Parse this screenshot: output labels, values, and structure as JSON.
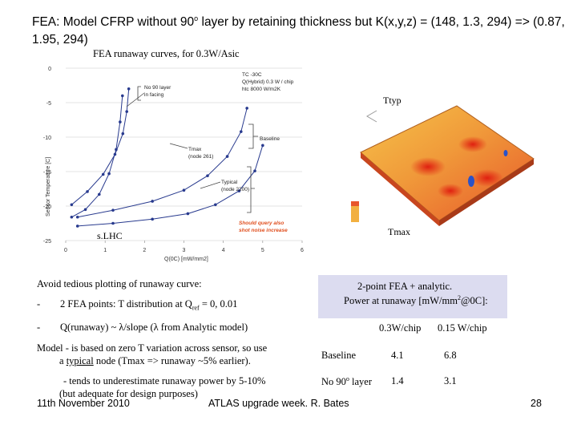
{
  "title": {
    "pre": "FEA: Model CFRP without 90",
    "sup": "o",
    "post": " layer by retaining thickness but K(x,y,z) = (148, 1.3, 294) => (0.87, 1.95, 294)"
  },
  "caption": "FEA runaway curves, for 0.3W/Asic",
  "chart_data": {
    "type": "scatter",
    "xlabel": "Q(0C) [mW/mm2]",
    "ylabel": "Sensor Temperature [C]",
    "xlim": [
      0,
      6
    ],
    "ylim": [
      -25,
      0
    ],
    "xticks": [
      "0",
      "1",
      "2",
      "3",
      "4",
      "5",
      "6"
    ],
    "yticks": [
      "0",
      "-5",
      "-10",
      "-15",
      "-20",
      "-25"
    ],
    "legend": [
      "TC  -30C",
      "Q(Hybrid) 0.3 W / chip",
      "htc   8000 W/m2K"
    ],
    "annotations": [
      "No 90 layer",
      "in facing",
      "Baseline",
      "Tmax",
      "(node 261)",
      "Typical",
      "(node 2200)",
      "Should query also",
      "shot noise increase"
    ],
    "series": [
      {
        "x": [
          0.15,
          0.5,
          0.85,
          1.1,
          1.28,
          1.38,
          1.44
        ],
        "y": [
          -21.6,
          -20.5,
          -18.3,
          -15.3,
          -11.8,
          -7.8,
          -4.0
        ]
      },
      {
        "x": [
          0.15,
          0.55,
          0.95,
          1.25,
          1.45,
          1.55,
          1.6
        ],
        "y": [
          -19.8,
          -17.9,
          -15.4,
          -12.5,
          -9.5,
          -6.3,
          -3.0
        ]
      },
      {
        "x": [
          0.3,
          1.2,
          2.2,
          3.0,
          3.6,
          4.1,
          4.45,
          4.6
        ],
        "y": [
          -21.6,
          -20.6,
          -19.3,
          -17.7,
          -15.6,
          -12.8,
          -9.2,
          -5.8
        ]
      },
      {
        "x": [
          0.3,
          1.2,
          2.2,
          3.1,
          3.8,
          4.4,
          4.8,
          5.0
        ],
        "y": [
          -22.9,
          -22.5,
          -21.9,
          -21.1,
          -19.8,
          -17.8,
          -14.9,
          -11.2
        ]
      }
    ]
  },
  "render": {
    "labels": {
      "ttyp": "Ttyp",
      "tmax": "Tmax",
      "slhc": "s.LHC"
    },
    "colors": {
      "curve": "#283a8e",
      "annotation_red": "#e05020",
      "box_fill": "#dcdcf0"
    }
  },
  "body": {
    "avoid": "Avoid tedious plotting of runaway curve:",
    "bullet_mark": "-",
    "bullet1_pre": "2 FEA points: T distribution at Q",
    "bullet1_sub": "ref",
    "bullet1_post": " = 0, 0.01",
    "bullet2": "Q(runaway) ~ λ/slope  (λ from Analytic model)",
    "model1": "Model - is based on zero T variation across sensor, so use",
    "model2_pre": "a ",
    "model2_u": "typical",
    "model2_post": " node (Tmax => runaway ~5% earlier).",
    "tends1": "- tends to underestimate runaway power by 5-10%",
    "tends2": "(but adequate for design purposes)"
  },
  "summary": {
    "line1": "2-point FEA + analytic.",
    "line2_pre": "Power at runaway [mW/mm",
    "line2_sup": "2",
    "line2_post": "@0C]:",
    "col1": "0.3W/chip",
    "col2": "0.15 W/chip",
    "rows": [
      {
        "label": "Baseline",
        "v1": "4.1",
        "v2": "6.8"
      },
      {
        "label_pre": "No 90",
        "label_sup": "o",
        "label_post": " layer",
        "v1": "1.4",
        "v2": "3.1"
      }
    ]
  },
  "footer": {
    "date": "11th November 2010",
    "event": "ATLAS upgrade week. R. Bates",
    "page": "28"
  }
}
